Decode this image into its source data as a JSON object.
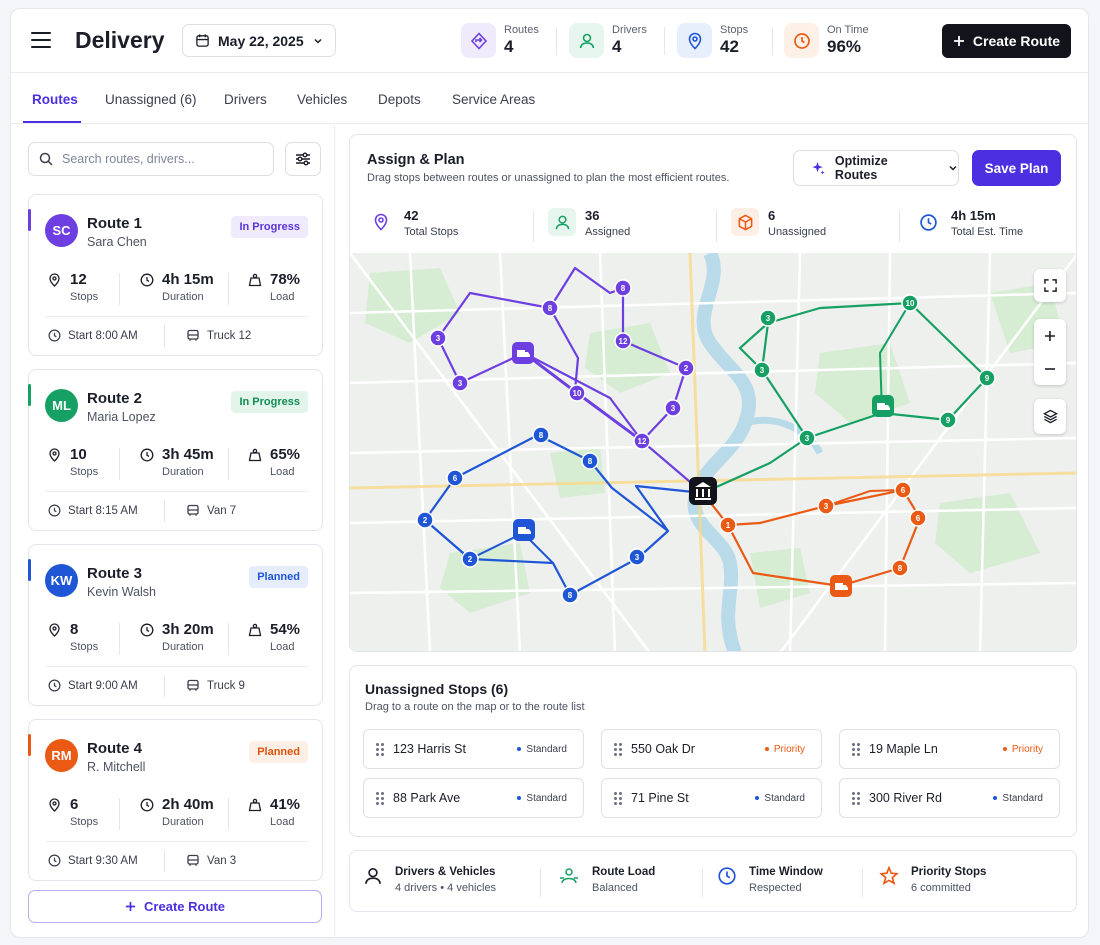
{
  "header": {
    "title": "Delivery",
    "date": "May 22, 2025",
    "kpis": [
      {
        "label": "Routes",
        "value": "4"
      },
      {
        "label": "Drivers",
        "value": "4"
      },
      {
        "label": "Stops",
        "value": "42"
      },
      {
        "label": "On Time",
        "value": "96%"
      }
    ],
    "create_label": "Create Route"
  },
  "tabs": [
    "Routes",
    "Unassigned (6)",
    "Drivers",
    "Vehicles",
    "Depots",
    "Service Areas"
  ],
  "search": {
    "placeholder": "Search routes, drivers..."
  },
  "routes": [
    {
      "initials": "SC",
      "name": "Route 1",
      "driver": "Sara Chen",
      "status": "In Progress",
      "stops": "12",
      "stops_label": "Stops",
      "duration": "4h 15m",
      "duration_label": "Duration",
      "load": "78%",
      "load_label": "Load",
      "start": "Start 8:00 AM",
      "vehicle": "Truck 12",
      "color": "#6d3fe0"
    },
    {
      "initials": "ML",
      "name": "Route 2",
      "driver": "Maria Lopez",
      "status": "In Progress",
      "stops": "10",
      "stops_label": "Stops",
      "duration": "3h 45m",
      "duration_label": "Duration",
      "load": "65%",
      "load_label": "Load",
      "start": "Start 8:15 AM",
      "vehicle": "Van 7",
      "color": "#16a063"
    },
    {
      "initials": "KW",
      "name": "Route 3",
      "driver": "Kevin Walsh",
      "status": "Planned",
      "stops": "8",
      "stops_label": "Stops",
      "duration": "3h 20m",
      "duration_label": "Duration",
      "load": "54%",
      "load_label": "Load",
      "start": "Start 9:00 AM",
      "vehicle": "Truck 9",
      "color": "#1f56d6"
    },
    {
      "initials": "RM",
      "name": "Route 4",
      "driver": "R. Mitchell",
      "status": "Planned",
      "stops": "6",
      "stops_label": "Stops",
      "duration": "2h 40m",
      "duration_label": "Duration",
      "load": "41%",
      "load_label": "Load",
      "start": "Start 9:30 AM",
      "vehicle": "Van 3",
      "color": "#ea5a14"
    }
  ],
  "create_route_label": "Create Route",
  "plan": {
    "title": "Assign & Plan",
    "subtitle": "Drag stops between routes or unassigned to plan the most efficient routes.",
    "optimize_label": "Optimize Routes",
    "save_label": "Save Plan",
    "stats": [
      {
        "value": "42",
        "label": "Total Stops"
      },
      {
        "value": "36",
        "label": "Assigned"
      },
      {
        "value": "6",
        "label": "Unassigned"
      },
      {
        "value": "4h 15m",
        "label": "Total Est. Time"
      }
    ]
  },
  "map": {
    "route1_markers": [
      "8",
      "8",
      "3",
      "12",
      "3",
      "2",
      "10",
      "3",
      "12"
    ],
    "route2_markers": [
      "3",
      "10",
      "3",
      "9",
      "9",
      "3"
    ],
    "route3_markers": [
      "8",
      "6",
      "2",
      "8",
      "2",
      "8",
      "3"
    ],
    "route4_markers": [
      "1",
      "3",
      "6",
      "6",
      "8"
    ]
  },
  "unassigned": {
    "title": "Unassigned Stops (6)",
    "subtitle": "Drag to a route on the map or to the route list",
    "stops": [
      {
        "address": "123 Harris St",
        "priority": "Standard"
      },
      {
        "address": "550 Oak Dr",
        "priority": "Priority"
      },
      {
        "address": "19 Maple Ln",
        "priority": "Priority"
      },
      {
        "address": "88 Park Ave",
        "priority": "Standard"
      },
      {
        "address": "71 Pine St",
        "priority": "Standard"
      },
      {
        "address": "300 River Rd",
        "priority": "Standard"
      }
    ]
  },
  "summary": [
    {
      "title": "Drivers & Vehicles",
      "sub": "4 drivers • 4 vehicles"
    },
    {
      "title": "Route Load",
      "sub": "Balanced"
    },
    {
      "title": "Time Window",
      "sub": "Respected"
    },
    {
      "title": "Priority Stops",
      "sub": "6 committed"
    }
  ],
  "colors": {
    "accent": "#4c2fe0",
    "route1": "#6d3fe0",
    "route2": "#16a063",
    "route3": "#1f56d6",
    "route4": "#ea5a14"
  }
}
